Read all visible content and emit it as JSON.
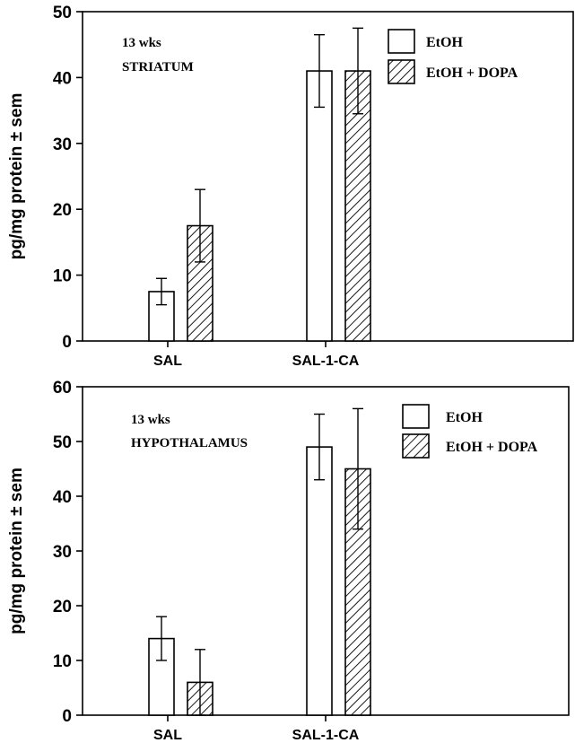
{
  "chart_data": [
    {
      "type": "bar",
      "categories": [
        "SAL",
        "SAL-1-CA"
      ],
      "ylabel": "pg/mg protein ± sem",
      "ylim": [
        0,
        50
      ],
      "yticks": [
        0,
        10,
        20,
        30,
        40,
        50
      ],
      "annotation": [
        "13 wks",
        "STRIATUM"
      ],
      "legend_position": "top-right",
      "series": [
        {
          "name": "EtOH",
          "pattern": "open",
          "values": [
            7.5,
            41
          ],
          "errors": [
            2,
            5.5
          ]
        },
        {
          "name": "EtOH + DOPA",
          "pattern": "hatched",
          "values": [
            17.5,
            41
          ],
          "errors": [
            5.5,
            6.5
          ]
        }
      ]
    },
    {
      "type": "bar",
      "categories": [
        "SAL",
        "SAL-1-CA"
      ],
      "ylabel": "pg/mg protein ± sem",
      "ylim": [
        0,
        60
      ],
      "yticks": [
        0,
        10,
        20,
        30,
        40,
        50,
        60
      ],
      "annotation": [
        "13 wks",
        "HYPOTHALAMUS"
      ],
      "legend_position": "top-right",
      "series": [
        {
          "name": "EtOH",
          "pattern": "open",
          "values": [
            14,
            49
          ],
          "errors": [
            4,
            6
          ]
        },
        {
          "name": "EtOH + DOPA",
          "pattern": "hatched",
          "values": [
            6,
            45
          ],
          "errors": [
            6,
            11
          ]
        }
      ]
    }
  ]
}
